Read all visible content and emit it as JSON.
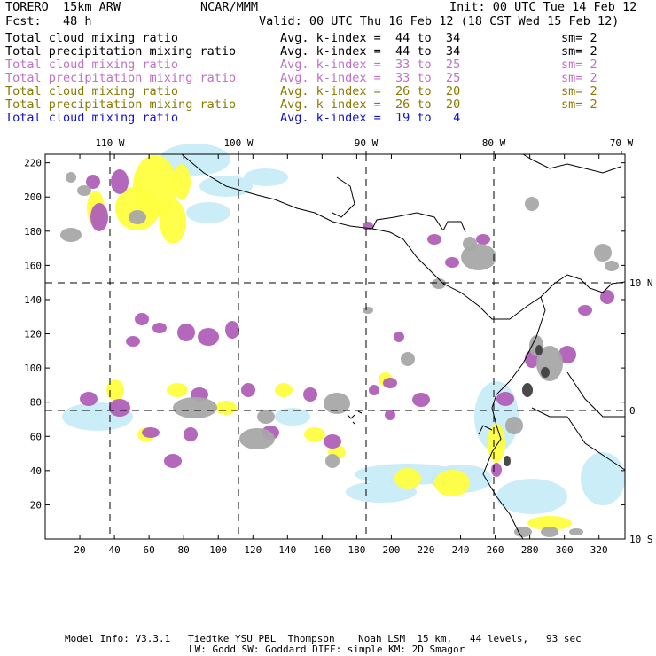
{
  "header": {
    "model": "TORERO  15km ARW",
    "org": "NCAR/MMM",
    "init": "Init: 00 UTC Tue 14 Feb 12",
    "fcst": "Fcst:   48 h",
    "valid": "Valid: 00 UTC Thu 16 Feb 12 (18 CST Wed 15 Feb 12)"
  },
  "legend": [
    {
      "field": "Total cloud mixing ratio",
      "kindex": "Avg. k-index =  44 to  34",
      "sm": "sm= 2",
      "color": "#000000"
    },
    {
      "field": "Total precipitation mixing ratio",
      "kindex": "Avg. k-index =  44 to  34",
      "sm": "sm= 2",
      "color": "#000000"
    },
    {
      "field": "Total cloud mixing ratio",
      "kindex": "Avg. k-index =  33 to  25",
      "sm": "sm= 2",
      "color": "#c070c8"
    },
    {
      "field": "Total precipitation mixing ratio",
      "kindex": "Avg. k-index =  33 to  25",
      "sm": "sm= 2",
      "color": "#c070c8"
    },
    {
      "field": "Total cloud mixing ratio",
      "kindex": "Avg. k-index =  26 to  20",
      "sm": "sm= 2",
      "color": "#8a7a00"
    },
    {
      "field": "Total precipitation mixing ratio",
      "kindex": "Avg. k-index =  26 to  20",
      "sm": "sm= 2",
      "color": "#8a7a00"
    },
    {
      "field": "Total cloud mixing ratio",
      "kindex": "Avg. k-index =  19 to   4",
      "sm": "",
      "color": "#1010d0"
    }
  ],
  "map": {
    "top_lon_labels": [
      "110 W",
      "100 W",
      "90 W",
      "80 W",
      "70 W"
    ],
    "right_lat_labels": [
      "10 N",
      "0",
      "10 S"
    ],
    "x_ticks": [
      "20",
      "40",
      "60",
      "80",
      "100",
      "120",
      "140",
      "160",
      "180",
      "200",
      "220",
      "240",
      "260",
      "280",
      "300",
      "320"
    ],
    "y_ticks": [
      "20",
      "40",
      "60",
      "80",
      "100",
      "120",
      "140",
      "160",
      "180",
      "200",
      "220"
    ],
    "x_range": [
      0,
      335
    ],
    "y_range": [
      0,
      225
    ],
    "colors": {
      "gray": "#a8a8a8",
      "purple": "#b060b8",
      "yellow": "#ffff40",
      "cyan": "#c8ecf8",
      "dark": "#404040"
    }
  },
  "footer": {
    "line1": "Model Info: V3.3.1   Tiedtke YSU PBL  Thompson    Noah LSM  15 km,   44 levels,   93 sec",
    "line2": "LW: Godd SW: Goddard DIFF: simple KM: 2D Smagor"
  }
}
